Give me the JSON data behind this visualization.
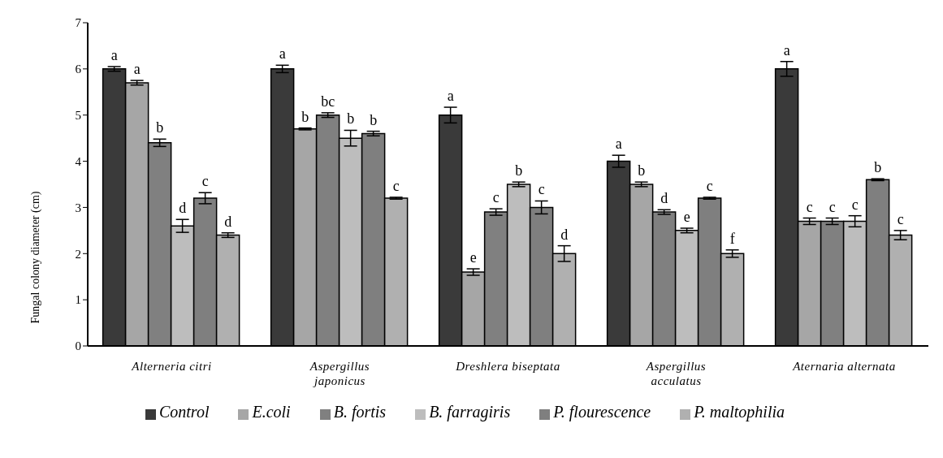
{
  "chart_data": {
    "type": "bar",
    "ylabel": "Fungal colony diameter (cm)",
    "categories": [
      "Alterneria citri",
      "Aspergillus japonicus",
      "Dreshlera biseptata",
      "Aspergillus acculatus",
      "Aternaria alternata"
    ],
    "series": [
      {
        "name": "Control",
        "color": "#3a3a3a",
        "values": [
          6.0,
          6.0,
          5.0,
          4.0,
          6.0
        ],
        "errors": [
          0.05,
          0.08,
          0.17,
          0.13,
          0.16
        ],
        "value_labels": [
          "a",
          "a",
          "a",
          "a",
          "a"
        ]
      },
      {
        "name": "E.coli",
        "color": "#a6a6a6",
        "values": [
          5.7,
          4.7,
          1.6,
          3.5,
          2.7
        ],
        "errors": [
          0.05,
          0.02,
          0.07,
          0.05,
          0.07
        ],
        "value_labels": [
          "a",
          "b",
          "e",
          "b",
          "c"
        ]
      },
      {
        "name": "B. fortis",
        "color": "#808080",
        "values": [
          4.4,
          5.0,
          2.9,
          2.9,
          2.7
        ],
        "errors": [
          0.08,
          0.05,
          0.07,
          0.05,
          0.07
        ],
        "value_labels": [
          "b",
          "bc",
          "c",
          "d",
          "c"
        ]
      },
      {
        "name": "B. farragiris",
        "color": "#bdbdbd",
        "values": [
          2.6,
          4.5,
          3.5,
          2.5,
          2.7
        ],
        "errors": [
          0.14,
          0.17,
          0.05,
          0.05,
          0.12
        ],
        "value_labels": [
          "d",
          "b",
          "b",
          "e",
          "c"
        ]
      },
      {
        "name": "P. flourescence",
        "color": "#7f7f7f",
        "values": [
          3.2,
          4.6,
          3.0,
          3.2,
          3.6
        ],
        "errors": [
          0.12,
          0.05,
          0.14,
          0.02,
          0.02
        ],
        "value_labels": [
          "c",
          "b",
          "c",
          "c",
          "b"
        ]
      },
      {
        "name": "P. maltophilia",
        "color": "#b0b0b0",
        "values": [
          2.4,
          3.2,
          2.0,
          2.0,
          2.4
        ],
        "errors": [
          0.05,
          0.02,
          0.17,
          0.08,
          0.1
        ],
        "value_labels": [
          "d",
          "c",
          "d",
          "f",
          "c"
        ]
      }
    ],
    "ylim": [
      0,
      7
    ],
    "yticks": [
      0,
      1,
      2,
      3,
      4,
      5,
      6,
      7
    ],
    "grid": false,
    "legend": "bottom"
  }
}
